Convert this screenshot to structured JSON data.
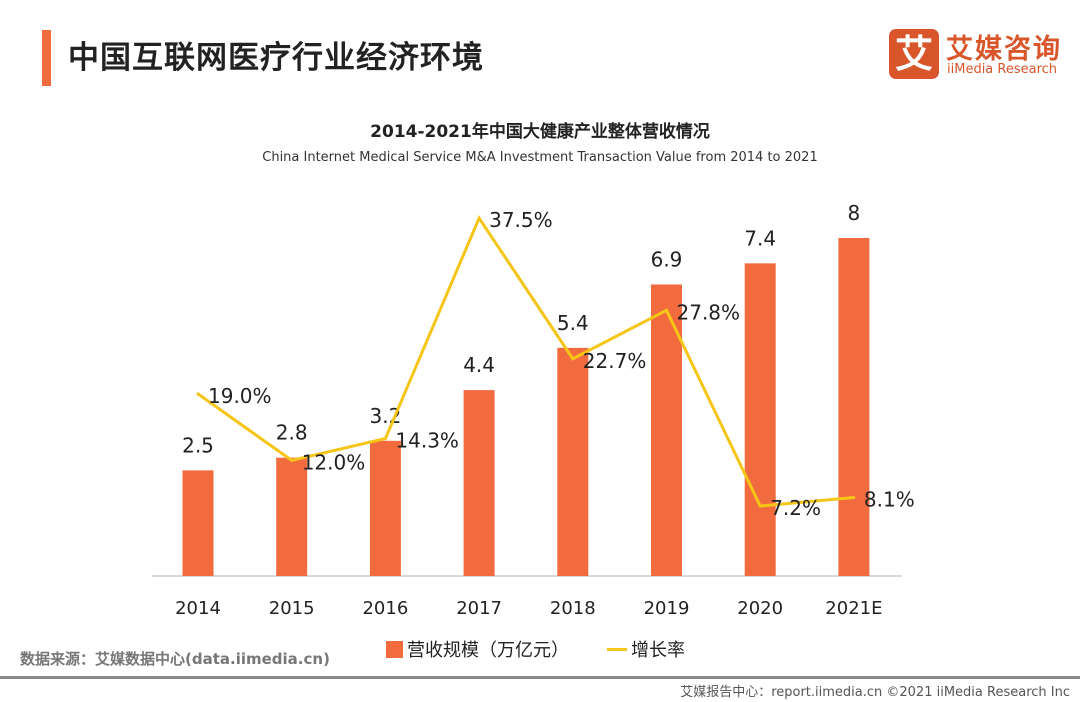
{
  "header": {
    "title": "中国互联网医疗行业经济环境",
    "logo_cn": "艾媒咨询",
    "logo_en": "iiMedia Research",
    "logo_mark": "艾"
  },
  "colors": {
    "accent": "#ef6a3c",
    "bar": "#f26b3e",
    "line": "#f5c518"
  },
  "chart_data": {
    "type": "bar+line",
    "title": "2014-2021年中国大健康产业整体营收情况",
    "subtitle": "China Internet Medical Service M&A Investment Transaction Value from 2014 to 2021",
    "categories": [
      "2014",
      "2015",
      "2016",
      "2017",
      "2018",
      "2019",
      "2020",
      "2021E"
    ],
    "series": [
      {
        "name": "营收规模（万亿元）",
        "type": "bar",
        "values": [
          2.5,
          2.8,
          3.2,
          4.4,
          5.4,
          6.9,
          7.4,
          8
        ],
        "labels": [
          "2.5",
          "2.8",
          "3.2",
          "4.4",
          "5.4",
          "6.9",
          "7.4",
          "8"
        ]
      },
      {
        "name": "增长率",
        "type": "line",
        "values": [
          19.0,
          12.0,
          14.3,
          37.5,
          22.7,
          27.8,
          7.2,
          8.1
        ],
        "labels": [
          "19.0%",
          "12.0%",
          "14.3%",
          "37.5%",
          "22.7%",
          "27.8%",
          "7.2%",
          "8.1%"
        ]
      }
    ],
    "grid": false,
    "legend": "bottom"
  },
  "source": "数据来源：艾媒数据中心(data.iimedia.cn)",
  "footer": "艾媒报告中心：report.iimedia.cn   ©2021  iiMedia Research  Inc"
}
